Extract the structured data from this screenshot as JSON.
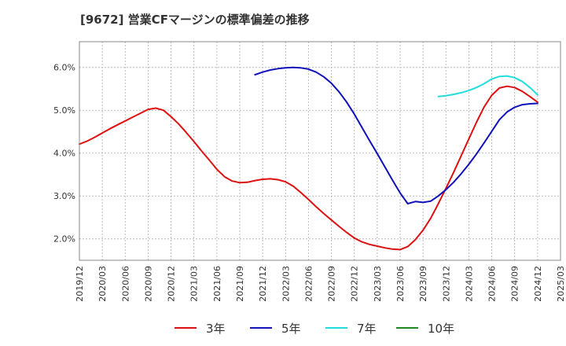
{
  "chart_data": {
    "type": "line",
    "title": "[9672]  営業CFマージンの標準偏差の推移",
    "xlabel": "",
    "ylabel": "",
    "x_ticks": [
      "2019/12",
      "2020/03",
      "2020/06",
      "2020/09",
      "2020/12",
      "2021/03",
      "2021/06",
      "2021/09",
      "2021/12",
      "2022/03",
      "2022/06",
      "2022/09",
      "2022/12",
      "2023/03",
      "2023/06",
      "2023/09",
      "2023/12",
      "2024/03",
      "2024/06",
      "2024/09",
      "2024/12",
      "2025/03"
    ],
    "y_ticks": [
      "2.0%",
      "3.0%",
      "4.0%",
      "5.0%",
      "6.0%"
    ],
    "y_tick_values": [
      2.0,
      3.0,
      4.0,
      5.0,
      6.0
    ],
    "ylim": [
      1.5,
      6.6
    ],
    "grid": true,
    "legend_position": "bottom",
    "series": [
      {
        "name": "3年",
        "color": "#dd1111",
        "x": [
          "2019/12",
          "2020/01",
          "2020/02",
          "2020/03",
          "2020/04",
          "2020/05",
          "2020/06",
          "2020/07",
          "2020/08",
          "2020/09",
          "2020/10",
          "2020/11",
          "2020/12",
          "2021/01",
          "2021/02",
          "2021/03",
          "2021/04",
          "2021/05",
          "2021/06",
          "2021/07",
          "2021/08",
          "2021/09",
          "2021/10",
          "2021/11",
          "2021/12",
          "2022/01",
          "2022/02",
          "2022/03",
          "2022/04",
          "2022/05",
          "2022/06",
          "2022/07",
          "2022/08",
          "2022/09",
          "2022/10",
          "2022/11",
          "2022/12",
          "2023/01",
          "2023/02",
          "2023/03",
          "2023/04",
          "2023/05",
          "2023/06",
          "2023/07",
          "2023/08",
          "2023/09",
          "2023/10",
          "2023/11",
          "2023/12",
          "2024/01",
          "2024/02",
          "2024/03",
          "2024/04",
          "2024/05",
          "2024/06",
          "2024/07",
          "2024/08",
          "2024/09",
          "2024/10",
          "2024/11",
          "2024/12"
        ],
        "values": [
          4.21,
          4.28,
          4.37,
          4.47,
          4.57,
          4.66,
          4.75,
          4.84,
          4.93,
          5.02,
          5.05,
          5.0,
          4.85,
          4.68,
          4.48,
          4.27,
          4.05,
          3.84,
          3.62,
          3.45,
          3.35,
          3.31,
          3.32,
          3.36,
          3.39,
          3.4,
          3.38,
          3.33,
          3.23,
          3.08,
          2.92,
          2.75,
          2.59,
          2.44,
          2.29,
          2.15,
          2.02,
          1.93,
          1.87,
          1.83,
          1.79,
          1.76,
          1.75,
          1.82,
          1.98,
          2.2,
          2.48,
          2.82,
          3.18,
          3.55,
          3.94,
          4.33,
          4.72,
          5.08,
          5.35,
          5.52,
          5.56,
          5.53,
          5.44,
          5.32,
          5.19
        ]
      },
      {
        "name": "5年",
        "color": "#1111bb",
        "x": [
          "2021/11",
          "2021/12",
          "2022/01",
          "2022/02",
          "2022/03",
          "2022/04",
          "2022/05",
          "2022/06",
          "2022/07",
          "2022/08",
          "2022/09",
          "2022/10",
          "2022/11",
          "2022/12",
          "2023/01",
          "2023/02",
          "2023/03",
          "2023/04",
          "2023/05",
          "2023/06",
          "2023/07",
          "2023/08",
          "2023/09",
          "2023/10",
          "2023/11",
          "2023/12",
          "2024/01",
          "2024/02",
          "2024/03",
          "2024/04",
          "2024/05",
          "2024/06",
          "2024/07",
          "2024/08",
          "2024/09",
          "2024/10",
          "2024/11",
          "2024/12"
        ],
        "values": [
          5.83,
          5.89,
          5.94,
          5.97,
          5.99,
          6.0,
          5.99,
          5.96,
          5.89,
          5.78,
          5.63,
          5.43,
          5.19,
          4.91,
          4.6,
          4.29,
          3.99,
          3.68,
          3.37,
          3.07,
          2.82,
          2.87,
          2.85,
          2.88,
          3.0,
          3.15,
          3.32,
          3.52,
          3.74,
          3.98,
          4.24,
          4.51,
          4.78,
          4.96,
          5.07,
          5.13,
          5.15,
          5.16
        ]
      },
      {
        "name": "7年",
        "color": "#22dddd",
        "x": [
          "2023/11",
          "2023/12",
          "2024/01",
          "2024/02",
          "2024/03",
          "2024/04",
          "2024/05",
          "2024/06",
          "2024/07",
          "2024/08",
          "2024/09",
          "2024/10",
          "2024/11",
          "2024/12"
        ],
        "values": [
          5.32,
          5.34,
          5.37,
          5.41,
          5.46,
          5.53,
          5.62,
          5.73,
          5.79,
          5.8,
          5.76,
          5.67,
          5.53,
          5.36
        ]
      },
      {
        "name": "10年",
        "color": "#228822",
        "x": [],
        "values": []
      }
    ]
  }
}
